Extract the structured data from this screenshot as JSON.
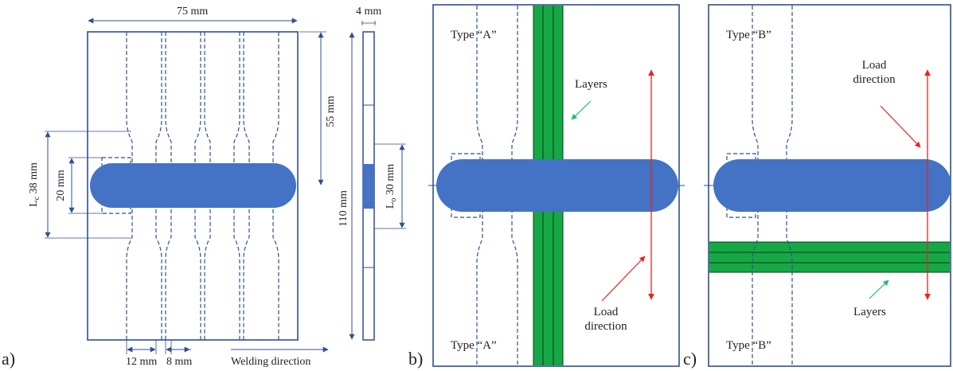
{
  "colors": {
    "outline": "#2f4f8f",
    "dash": "#2f4f8f",
    "weld": "#4472c4",
    "layers": "#15a845",
    "load_arrow": "#e8231f",
    "layers_arrow": "#19c06d"
  },
  "panel_a": {
    "label": "a)",
    "width_dim": "75 mm",
    "height_dim": "110 mm",
    "top_dim": "55 mm",
    "thickness_dim": "4 mm",
    "lc_dim": "L",
    "lc_sub": "c",
    "lc_value": " 38 mm",
    "grip_dim": "20 mm",
    "lo_dim": "L",
    "lo_sub": "o",
    "lo_value": " 30 mm",
    "bottom_dim_1": "12 mm",
    "bottom_dim_2": "8 mm",
    "welding_direction": "Welding direction"
  },
  "panel_b": {
    "label": "b)",
    "type_top": "Type “A”",
    "type_bottom": "Type “A”",
    "layers": "Layers",
    "load_1": "Load",
    "load_2": "direction"
  },
  "panel_c": {
    "label": "c)",
    "type_top": "Type “B”",
    "type_bottom": "Type “B”",
    "layers": "Layers",
    "load_1": "Load",
    "load_2": "direction"
  }
}
